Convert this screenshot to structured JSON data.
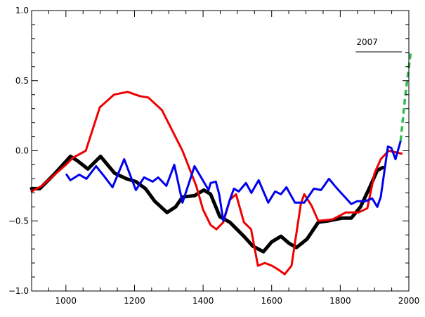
{
  "chart_data": {
    "type": "line",
    "title": "",
    "xlabel": "",
    "ylabel": "",
    "xlim": [
      900,
      2000
    ],
    "ylim": [
      -1.0,
      1.0
    ],
    "x_ticks": [
      1000,
      1200,
      1400,
      1600,
      1800,
      2000
    ],
    "x_tick_labels": [
      "1000",
      "1200",
      "1400",
      "1600",
      "1800",
      "2000"
    ],
    "y_ticks": [
      -1.0,
      -0.5,
      0.0,
      0.5,
      1.0
    ],
    "y_tick_labels": [
      "-1.0",
      "-0.5",
      "0.0",
      "0.5",
      "1.0"
    ],
    "grid": false,
    "annotation": {
      "text": "2007",
      "y": 0.71,
      "x_from": 1845,
      "x_to": 1980
    },
    "series": [
      {
        "color": "#000000",
        "style": "solid-thick",
        "x": [
          900,
          924,
          965,
          1013,
          1033,
          1064,
          1101,
          1142,
          1177,
          1204,
          1232,
          1259,
          1295,
          1320,
          1340,
          1375,
          1402,
          1422,
          1449,
          1478,
          1519,
          1545,
          1576,
          1600,
          1627,
          1651,
          1672,
          1703,
          1736,
          1764,
          1805,
          1832,
          1859,
          1888,
          1908,
          1924
        ],
        "y": [
          -0.27,
          -0.27,
          -0.17,
          -0.04,
          -0.07,
          -0.13,
          -0.04,
          -0.16,
          -0.2,
          -0.22,
          -0.27,
          -0.36,
          -0.44,
          -0.4,
          -0.33,
          -0.32,
          -0.28,
          -0.31,
          -0.47,
          -0.51,
          -0.61,
          -0.68,
          -0.72,
          -0.65,
          -0.61,
          -0.66,
          -0.69,
          -0.63,
          -0.51,
          -0.5,
          -0.48,
          -0.48,
          -0.4,
          -0.25,
          -0.14,
          -0.12
        ]
      },
      {
        "color": "#ee0000",
        "style": "solid",
        "x": [
          900,
          930,
          1000,
          1020,
          1058,
          1099,
          1140,
          1180,
          1215,
          1240,
          1280,
          1340,
          1380,
          1400,
          1422,
          1439,
          1459,
          1478,
          1496,
          1519,
          1540,
          1560,
          1580,
          1601,
          1621,
          1638,
          1658,
          1685,
          1695,
          1716,
          1736,
          1777,
          1816,
          1853,
          1879,
          1900,
          1918,
          1941,
          1979
        ],
        "y": [
          -0.29,
          -0.25,
          -0.1,
          -0.05,
          0.0,
          0.31,
          0.4,
          0.42,
          0.39,
          0.38,
          0.29,
          0.0,
          -0.25,
          -0.42,
          -0.53,
          -0.56,
          -0.51,
          -0.35,
          -0.31,
          -0.51,
          -0.56,
          -0.82,
          -0.8,
          -0.82,
          -0.85,
          -0.88,
          -0.82,
          -0.38,
          -0.31,
          -0.39,
          -0.5,
          -0.49,
          -0.44,
          -0.44,
          -0.41,
          -0.16,
          -0.06,
          0.0,
          -0.02
        ]
      },
      {
        "color": "#0000ee",
        "style": "solid",
        "x": [
          1002,
          1013,
          1039,
          1060,
          1088,
          1111,
          1136,
          1170,
          1204,
          1228,
          1253,
          1269,
          1293,
          1316,
          1340,
          1375,
          1416,
          1422,
          1437,
          1447,
          1459,
          1478,
          1490,
          1504,
          1525,
          1541,
          1562,
          1590,
          1610,
          1627,
          1643,
          1668,
          1695,
          1723,
          1744,
          1767,
          1791,
          1832,
          1849,
          1873,
          1893,
          1908,
          1918,
          1939,
          1949,
          1961,
          1976
        ],
        "y": [
          -0.17,
          -0.21,
          -0.17,
          -0.2,
          -0.11,
          -0.18,
          -0.26,
          -0.06,
          -0.28,
          -0.19,
          -0.22,
          -0.19,
          -0.25,
          -0.1,
          -0.37,
          -0.11,
          -0.28,
          -0.23,
          -0.22,
          -0.31,
          -0.5,
          -0.35,
          -0.27,
          -0.29,
          -0.23,
          -0.3,
          -0.21,
          -0.37,
          -0.29,
          -0.31,
          -0.26,
          -0.37,
          -0.37,
          -0.27,
          -0.28,
          -0.2,
          -0.27,
          -0.38,
          -0.36,
          -0.36,
          -0.34,
          -0.4,
          -0.33,
          0.03,
          0.02,
          -0.06,
          0.07
        ]
      },
      {
        "color": "#33bb55",
        "style": "dashed",
        "x": [
          1976,
          1990,
          2006
        ],
        "y": [
          0.07,
          0.4,
          0.71
        ]
      }
    ]
  }
}
